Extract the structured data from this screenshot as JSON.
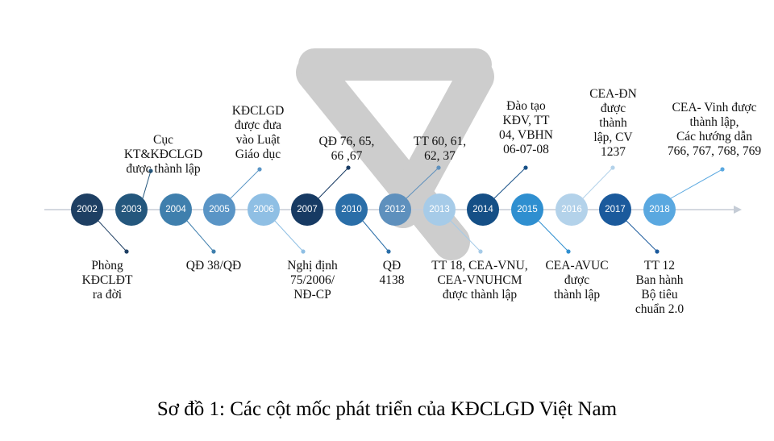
{
  "colors": {
    "axis": "#c5ccd6",
    "connector": "#8aa6bf",
    "watermark": "#c8c8c8"
  },
  "watermark": {
    "icon": "v-logo-watermark"
  },
  "milestones": [
    {
      "year": "2002",
      "color": "#1e3f63",
      "label": "Phòng\nKĐCLĐT\nra đời",
      "side": "below"
    },
    {
      "year": "2003",
      "color": "#24577d",
      "label": "Cục KT&KĐCLGD\nđược thành lập",
      "side": "above"
    },
    {
      "year": "2004",
      "color": "#3f7fad",
      "label": "QĐ 38/QĐ",
      "side": "below"
    },
    {
      "year": "2005",
      "color": "#5a95c6",
      "label": "KĐCLGD\nđược đưa\nvào Luật\nGiáo dục",
      "side": "above"
    },
    {
      "year": "2006",
      "color": "#8fbfe4",
      "label": "Nghị định\n75/2006/\nNĐ-CP",
      "side": "below"
    },
    {
      "year": "2007",
      "color": "#173a63",
      "label": "QĐ 76, 65,\n66 ,67",
      "side": "above"
    },
    {
      "year": "2010",
      "color": "#2a6ea8",
      "label": "QĐ\n4138",
      "side": "below"
    },
    {
      "year": "2012",
      "color": "#5e90bd",
      "label": "TT 60, 61,\n62, 37",
      "side": "above"
    },
    {
      "year": "2013",
      "color": "#a6cbe8",
      "label": "TT 18, CEA-VNU,\nCEA-VNUHCM\nđược thành lập",
      "side": "below"
    },
    {
      "year": "2014",
      "color": "#154f86",
      "label": "Đào tạo\nKĐV, TT\n04, VBHN\n06-07-08",
      "side": "above"
    },
    {
      "year": "2015",
      "color": "#2f8fd0",
      "label": "CEA-AVUC\nđược\nthành lập",
      "side": "below"
    },
    {
      "year": "2016",
      "color": "#b3d2ea",
      "label": "CEA-ĐN\nđược\nthành\nlập, CV\n1237",
      "side": "above"
    },
    {
      "year": "2017",
      "color": "#1b5a9c",
      "label": "TT 12\nBan hành\nBộ tiêu\nchuẩn 2.0",
      "side": "below"
    },
    {
      "year": "2018",
      "color": "#5aa8e0",
      "label": "CEA- Vinh được\nthành lập,\nCác hướng dẫn\n766, 767, 768, 769",
      "side": "above"
    }
  ],
  "caption": "Sơ đồ 1: Các cột mốc phát triển của KĐCLGD Việt Nam"
}
